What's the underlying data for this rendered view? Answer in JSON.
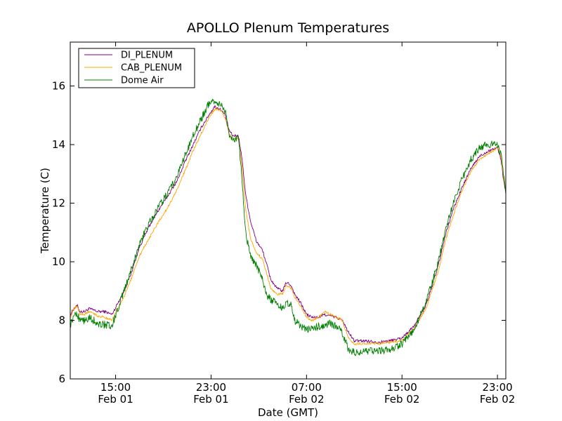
{
  "chart_data": {
    "type": "line",
    "title": "APOLLO Plenum Temperatures",
    "xlabel": "Date (GMT)",
    "ylabel": "Temperature (C)",
    "xlim": [
      11.2,
      47.7
    ],
    "ylim": [
      6,
      17.5
    ],
    "x_unit": "hours since 2013-02-01 00:00 GMT",
    "x_ticks": [
      {
        "value": 15,
        "line1": "15:00",
        "line2": "Feb 01"
      },
      {
        "value": 23,
        "line1": "23:00",
        "line2": "Feb 01"
      },
      {
        "value": 31,
        "line1": "07:00",
        "line2": "Feb 02"
      },
      {
        "value": 39,
        "line1": "15:00",
        "line2": "Feb 02"
      },
      {
        "value": 47,
        "line1": "23:00",
        "line2": "Feb 02"
      }
    ],
    "y_ticks": [
      {
        "value": 6,
        "label": "6"
      },
      {
        "value": 8,
        "label": "8"
      },
      {
        "value": 10,
        "label": "10"
      },
      {
        "value": 12,
        "label": "12"
      },
      {
        "value": 14,
        "label": "14"
      },
      {
        "value": 16,
        "label": "16"
      }
    ],
    "legend_position": "top-left",
    "series": [
      {
        "name": "DI_PLENUM",
        "color": "#800080",
        "noise": 0.05,
        "points": [
          [
            11.2,
            8.2
          ],
          [
            11.5,
            8.4
          ],
          [
            11.8,
            8.5
          ],
          [
            12.0,
            8.3
          ],
          [
            12.4,
            8.3
          ],
          [
            12.8,
            8.4
          ],
          [
            13.5,
            8.3
          ],
          [
            14.1,
            8.3
          ],
          [
            14.7,
            8.2
          ],
          [
            15.2,
            8.6
          ],
          [
            15.7,
            9.0
          ],
          [
            16.3,
            9.6
          ],
          [
            17.0,
            10.5
          ],
          [
            17.8,
            11.2
          ],
          [
            18.5,
            11.7
          ],
          [
            19.3,
            12.2
          ],
          [
            20.2,
            12.8
          ],
          [
            20.8,
            13.4
          ],
          [
            21.5,
            14.0
          ],
          [
            22.2,
            14.6
          ],
          [
            22.8,
            15.0
          ],
          [
            23.3,
            15.3
          ],
          [
            23.8,
            15.2
          ],
          [
            24.2,
            15.0
          ],
          [
            24.5,
            14.5
          ],
          [
            24.8,
            14.3
          ],
          [
            25.3,
            14.3
          ],
          [
            25.6,
            13.5
          ],
          [
            25.9,
            12.3
          ],
          [
            26.3,
            11.4
          ],
          [
            26.8,
            10.7
          ],
          [
            27.3,
            10.4
          ],
          [
            27.6,
            10.0
          ],
          [
            28.0,
            9.4
          ],
          [
            28.5,
            9.1
          ],
          [
            29.0,
            9.0
          ],
          [
            29.3,
            9.3
          ],
          [
            29.7,
            9.2
          ],
          [
            30.0,
            8.9
          ],
          [
            30.5,
            8.6
          ],
          [
            31.0,
            8.2
          ],
          [
            31.5,
            8.1
          ],
          [
            32.0,
            8.1
          ],
          [
            32.5,
            8.2
          ],
          [
            33.0,
            8.15
          ],
          [
            33.5,
            8.1
          ],
          [
            34.0,
            8.0
          ],
          [
            34.5,
            7.6
          ],
          [
            35.0,
            7.3
          ],
          [
            36.0,
            7.3
          ],
          [
            37.0,
            7.25
          ],
          [
            38.0,
            7.3
          ],
          [
            39.0,
            7.4
          ],
          [
            40.0,
            7.8
          ],
          [
            41.0,
            8.5
          ],
          [
            42.0,
            9.8
          ],
          [
            42.7,
            11.0
          ],
          [
            43.3,
            11.8
          ],
          [
            44.0,
            12.5
          ],
          [
            44.8,
            13.2
          ],
          [
            45.5,
            13.6
          ],
          [
            46.3,
            13.8
          ],
          [
            47.0,
            13.9
          ],
          [
            47.3,
            13.5
          ],
          [
            47.5,
            12.8
          ],
          [
            47.7,
            12.4
          ]
        ]
      },
      {
        "name": "CAB_PLENUM",
        "color": "#ffa500",
        "noise": 0.04,
        "points": [
          [
            11.2,
            8.1
          ],
          [
            11.5,
            8.4
          ],
          [
            11.8,
            8.5
          ],
          [
            12.0,
            8.2
          ],
          [
            12.4,
            8.2
          ],
          [
            12.8,
            8.3
          ],
          [
            13.5,
            8.15
          ],
          [
            14.1,
            8.1
          ],
          [
            14.7,
            8.0
          ],
          [
            15.2,
            8.4
          ],
          [
            15.7,
            8.8
          ],
          [
            16.3,
            9.4
          ],
          [
            17.0,
            10.2
          ],
          [
            17.8,
            10.8
          ],
          [
            18.5,
            11.3
          ],
          [
            19.3,
            11.8
          ],
          [
            20.2,
            12.5
          ],
          [
            20.8,
            13.1
          ],
          [
            21.5,
            13.8
          ],
          [
            22.2,
            14.4
          ],
          [
            22.8,
            14.9
          ],
          [
            23.3,
            15.2
          ],
          [
            23.8,
            15.2
          ],
          [
            24.2,
            14.9
          ],
          [
            24.5,
            14.4
          ],
          [
            24.8,
            14.2
          ],
          [
            25.3,
            14.2
          ],
          [
            25.6,
            13.2
          ],
          [
            25.9,
            11.8
          ],
          [
            26.3,
            10.8
          ],
          [
            26.8,
            10.3
          ],
          [
            27.3,
            10.1
          ],
          [
            27.6,
            9.7
          ],
          [
            28.0,
            9.1
          ],
          [
            28.5,
            8.9
          ],
          [
            29.0,
            8.9
          ],
          [
            29.3,
            9.2
          ],
          [
            29.7,
            9.1
          ],
          [
            30.0,
            8.8
          ],
          [
            30.5,
            8.5
          ],
          [
            31.0,
            8.1
          ],
          [
            31.5,
            8.0
          ],
          [
            32.0,
            8.1
          ],
          [
            32.5,
            8.3
          ],
          [
            33.0,
            8.2
          ],
          [
            33.5,
            8.1
          ],
          [
            34.0,
            8.0
          ],
          [
            34.5,
            7.4
          ],
          [
            35.0,
            7.2
          ],
          [
            36.0,
            7.2
          ],
          [
            37.0,
            7.2
          ],
          [
            38.0,
            7.25
          ],
          [
            39.0,
            7.3
          ],
          [
            40.0,
            7.7
          ],
          [
            41.0,
            8.4
          ],
          [
            42.0,
            9.6
          ],
          [
            42.7,
            10.8
          ],
          [
            43.3,
            11.6
          ],
          [
            44.0,
            12.4
          ],
          [
            44.8,
            13.1
          ],
          [
            45.5,
            13.5
          ],
          [
            46.3,
            13.7
          ],
          [
            47.0,
            13.9
          ],
          [
            47.3,
            13.6
          ],
          [
            47.5,
            12.9
          ],
          [
            47.7,
            12.5
          ]
        ]
      },
      {
        "name": "Dome Air",
        "color": "#008000",
        "noise": 0.13,
        "points": [
          [
            11.2,
            7.8
          ],
          [
            11.5,
            8.2
          ],
          [
            11.8,
            8.2
          ],
          [
            12.0,
            8.0
          ],
          [
            12.4,
            8.0
          ],
          [
            12.8,
            8.1
          ],
          [
            13.5,
            7.9
          ],
          [
            14.1,
            7.85
          ],
          [
            14.7,
            7.8
          ],
          [
            15.2,
            8.4
          ],
          [
            15.7,
            9.0
          ],
          [
            16.3,
            9.7
          ],
          [
            17.0,
            10.6
          ],
          [
            17.8,
            11.3
          ],
          [
            18.5,
            11.8
          ],
          [
            19.3,
            12.3
          ],
          [
            20.2,
            13.0
          ],
          [
            20.8,
            13.6
          ],
          [
            21.5,
            14.3
          ],
          [
            22.2,
            14.9
          ],
          [
            22.8,
            15.4
          ],
          [
            23.3,
            15.5
          ],
          [
            23.8,
            15.4
          ],
          [
            24.2,
            15.1
          ],
          [
            24.5,
            14.4
          ],
          [
            24.8,
            14.2
          ],
          [
            25.3,
            14.2
          ],
          [
            25.6,
            12.8
          ],
          [
            25.9,
            11.0
          ],
          [
            26.3,
            10.2
          ],
          [
            26.8,
            9.9
          ],
          [
            27.3,
            9.4
          ],
          [
            27.6,
            8.9
          ],
          [
            28.0,
            8.7
          ],
          [
            28.5,
            8.6
          ],
          [
            29.0,
            8.4
          ],
          [
            29.3,
            8.6
          ],
          [
            29.7,
            8.5
          ],
          [
            30.0,
            8.0
          ],
          [
            30.5,
            7.8
          ],
          [
            31.0,
            7.7
          ],
          [
            31.5,
            7.7
          ],
          [
            32.0,
            7.8
          ],
          [
            32.5,
            7.8
          ],
          [
            33.0,
            7.9
          ],
          [
            33.5,
            7.8
          ],
          [
            34.0,
            7.6
          ],
          [
            34.5,
            7.0
          ],
          [
            35.0,
            6.9
          ],
          [
            36.0,
            6.95
          ],
          [
            37.0,
            6.95
          ],
          [
            38.0,
            7.0
          ],
          [
            39.0,
            7.2
          ],
          [
            40.0,
            7.7
          ],
          [
            41.0,
            8.6
          ],
          [
            42.0,
            9.9
          ],
          [
            42.7,
            11.2
          ],
          [
            43.3,
            12.0
          ],
          [
            44.0,
            12.8
          ],
          [
            44.8,
            13.5
          ],
          [
            45.5,
            13.9
          ],
          [
            46.3,
            14.0
          ],
          [
            47.0,
            14.0
          ],
          [
            47.3,
            13.7
          ],
          [
            47.5,
            13.0
          ],
          [
            47.7,
            12.3
          ]
        ]
      }
    ]
  }
}
